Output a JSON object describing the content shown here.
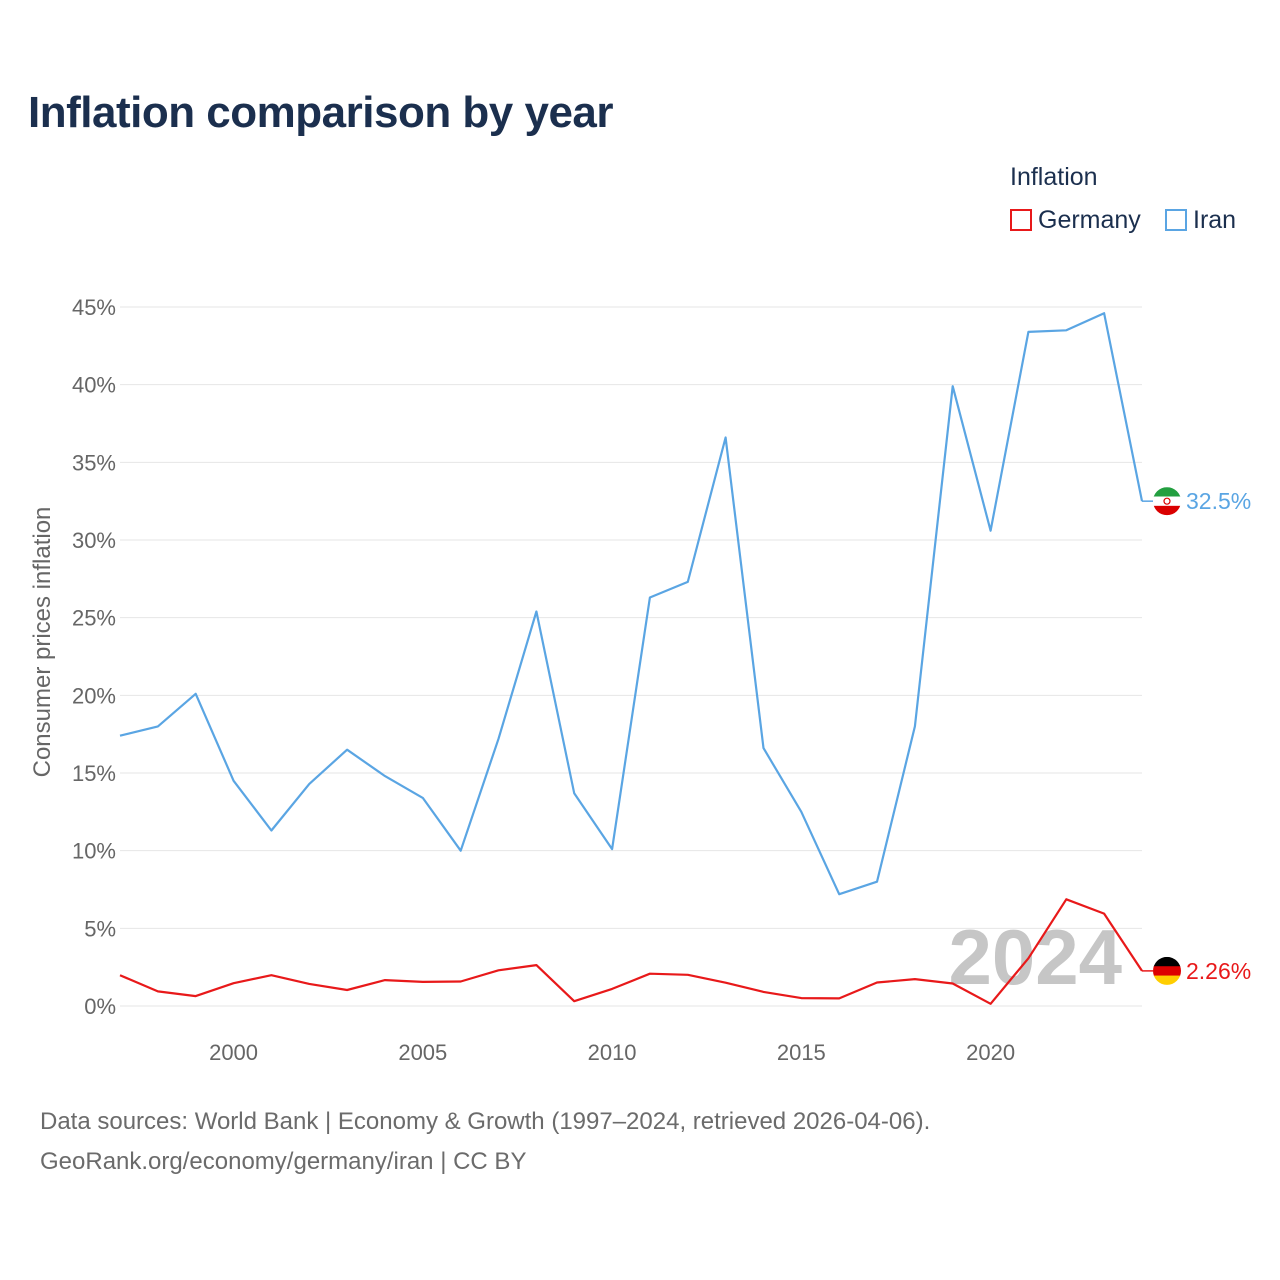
{
  "title": "Inflation comparison by year",
  "legend": {
    "title": "Inflation",
    "items": [
      {
        "label": "Germany",
        "color": "#e8191a"
      },
      {
        "label": "Iran",
        "color": "#5aa5e3"
      }
    ]
  },
  "footer": {
    "line1": "Data sources: World Bank | Economy & Growth (1997–2024, retrieved 2026-04-06).",
    "line2": "GeoRank.org/economy/germany/iran | CC BY"
  },
  "chart_data": {
    "type": "line",
    "title": "Inflation comparison by year",
    "xlabel": "",
    "ylabel": "Consumer prices inflation",
    "xlim": [
      1997,
      2024
    ],
    "ylim": [
      -1.5,
      46
    ],
    "yticks": [
      0,
      5,
      10,
      15,
      20,
      25,
      30,
      35,
      40,
      45
    ],
    "ytick_labels": [
      "0%",
      "5%",
      "10%",
      "15%",
      "20%",
      "25%",
      "30%",
      "35%",
      "40%",
      "45%"
    ],
    "xticks": [
      2000,
      2005,
      2010,
      2015,
      2020
    ],
    "xtick_labels": [
      "2000",
      "2005",
      "2010",
      "2015",
      "2020"
    ],
    "grid": true,
    "legend_position": "top-right",
    "highlight_year": "2024",
    "x": [
      1997,
      1998,
      1999,
      2000,
      2001,
      2002,
      2003,
      2004,
      2005,
      2006,
      2007,
      2008,
      2009,
      2010,
      2011,
      2012,
      2013,
      2014,
      2015,
      2016,
      2017,
      2018,
      2019,
      2020,
      2021,
      2022,
      2023,
      2024
    ],
    "series": [
      {
        "name": "Iran",
        "color": "#5aa5e3",
        "end_label": "32.5%",
        "values": [
          17.4,
          18.0,
          20.1,
          14.5,
          11.3,
          14.3,
          16.5,
          14.8,
          13.4,
          10.0,
          17.2,
          25.4,
          13.7,
          10.1,
          26.3,
          27.3,
          36.6,
          16.6,
          12.5,
          7.2,
          8.0,
          18.0,
          39.9,
          30.6,
          43.4,
          43.5,
          44.6,
          32.5
        ]
      },
      {
        "name": "Germany",
        "color": "#e8191a",
        "end_label": "2.26%",
        "values": [
          1.98,
          0.94,
          0.64,
          1.47,
          1.98,
          1.42,
          1.03,
          1.67,
          1.55,
          1.58,
          2.3,
          2.63,
          0.31,
          1.1,
          2.08,
          2.01,
          1.5,
          0.91,
          0.51,
          0.49,
          1.51,
          1.73,
          1.45,
          0.14,
          3.07,
          6.87,
          5.95,
          2.26
        ]
      }
    ]
  }
}
